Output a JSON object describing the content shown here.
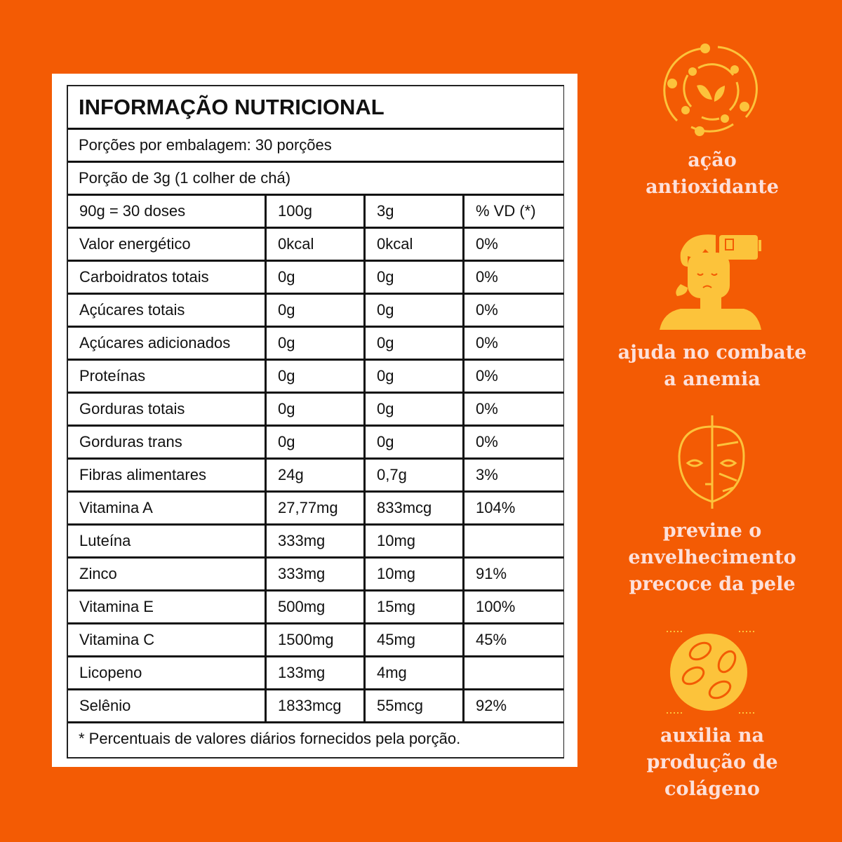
{
  "colors": {
    "background": "#f35b04",
    "icon": "#fcc33b",
    "feature_text": "#fde0da"
  },
  "table": {
    "title": "INFORMAÇÃO NUTRICIONAL",
    "servings_per_package": "Porções por embalagem: 30 porções",
    "serving_size": "Porção de 3g (1 colher de chá)",
    "header": [
      "90g = 30 doses",
      "100g",
      "3g",
      "% VD (*)"
    ],
    "rows": [
      [
        "Valor energético",
        "0kcal",
        "0kcal",
        "0%"
      ],
      [
        "Carboidratos totais",
        "0g",
        "0g",
        "0%"
      ],
      [
        "Açúcares totais",
        "0g",
        "0g",
        "0%"
      ],
      [
        "Açúcares adicionados",
        "0g",
        "0g",
        "0%"
      ],
      [
        "Proteínas",
        "0g",
        "0g",
        "0%"
      ],
      [
        "Gorduras totais",
        "0g",
        "0g",
        "0%"
      ],
      [
        "Gorduras trans",
        "0g",
        "0g",
        "0%"
      ],
      [
        "Fibras alimentares",
        "24g",
        "0,7g",
        "3%"
      ],
      [
        "Vitamina A",
        "27,77mg",
        "833mcg",
        "104%"
      ],
      [
        "Luteína",
        "333mg",
        "10mg",
        ""
      ],
      [
        "Zinco",
        "333mg",
        "10mg",
        "91%"
      ],
      [
        "Vitamina E",
        "500mg",
        "15mg",
        "100%"
      ],
      [
        "Vitamina C",
        "1500mg",
        "45mg",
        "45%"
      ],
      [
        "Licopeno",
        "133mg",
        "4mg",
        ""
      ],
      [
        "Selênio",
        "1833mcg",
        "55mcg",
        "92%"
      ]
    ],
    "footnote": "* Percentuais de valores diários fornecidos pela porção."
  },
  "features": [
    {
      "icon": "antioxidant-leaf-orbit-icon",
      "line1": "ação",
      "line2": "antioxidante"
    },
    {
      "icon": "tired-person-low-battery-icon",
      "line1": "ajuda no combate",
      "line2": "a anemia"
    },
    {
      "icon": "aging-face-icon",
      "line1": "previne o",
      "line2": "envelhecimento",
      "line3": "precoce da pele"
    },
    {
      "icon": "collagen-cells-icon",
      "line1": "auxilia na",
      "line2": "produção de",
      "line3": "colágeno"
    }
  ]
}
